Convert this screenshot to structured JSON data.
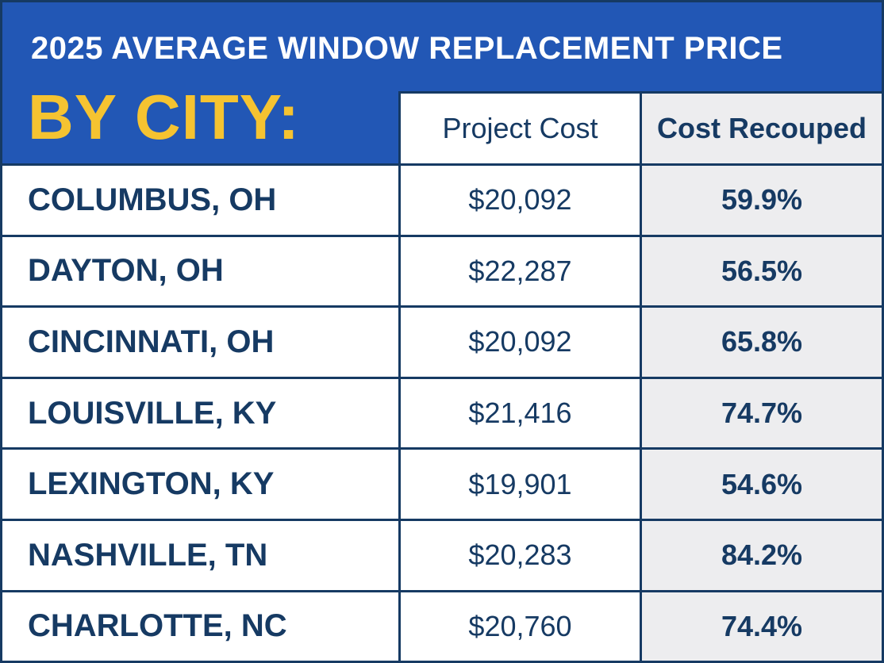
{
  "chart_data": {
    "type": "table",
    "title": "2025 AVERAGE WINDOW REPLACEMENT PRICE",
    "subtitle": "BY CITY:",
    "columns": [
      "Project Cost",
      "Cost Recouped"
    ],
    "rows": [
      {
        "city": "COLUMBUS, OH",
        "cost": "$20,092",
        "recouped": "59.9%"
      },
      {
        "city": "DAYTON, OH",
        "cost": "$22,287",
        "recouped": "56.5%"
      },
      {
        "city": "CINCINNATI, OH",
        "cost": "$20,092",
        "recouped": "65.8%"
      },
      {
        "city": "LOUISVILLE, KY",
        "cost": "$21,416",
        "recouped": "74.7%"
      },
      {
        "city": "LEXINGTON, KY",
        "cost": "$19,901",
        "recouped": "54.6%"
      },
      {
        "city": "NASHVILLE, TN",
        "cost": "$20,283",
        "recouped": "84.2%"
      },
      {
        "city": "CHARLOTTE, NC",
        "cost": "$20,760",
        "recouped": "74.4%"
      }
    ]
  },
  "colors": {
    "header_blue": "#2257b5",
    "border_navy": "#163a63",
    "subtitle_yellow": "#f5c331",
    "recoup_column_gray": "#ededef",
    "text_navy": "#163a63"
  }
}
